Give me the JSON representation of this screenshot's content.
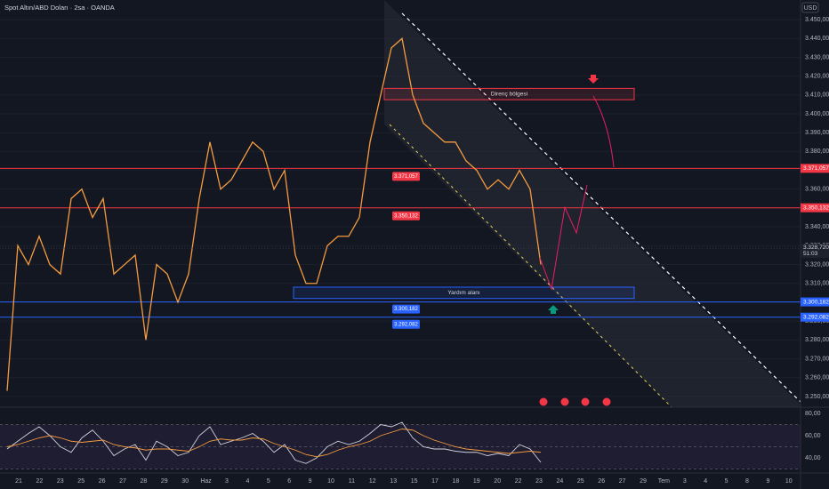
{
  "chart_data": [
    {
      "type": "line",
      "title": "Spot Altın/ABD Doları · 2sa · OANDA",
      "currency": "USD",
      "ylim": [
        3244.3,
        3460.4
      ],
      "yticks": [
        {
          "value": 3250,
          "label": "3.250,000"
        },
        {
          "value": 3260,
          "label": "3.260,000"
        },
        {
          "value": 3270,
          "label": "3.270,000"
        },
        {
          "value": 3280,
          "label": "3.280,000"
        },
        {
          "value": 3290,
          "label": "3.290,000"
        },
        {
          "value": 3300,
          "label": "3.300,000"
        },
        {
          "value": 3310,
          "label": "3.310,000"
        },
        {
          "value": 3320,
          "label": "3.320,000"
        },
        {
          "value": 3330,
          "label": "3.330,000"
        },
        {
          "value": 3340,
          "label": "3.340,000"
        },
        {
          "value": 3350,
          "label": "3.350,000"
        },
        {
          "value": 3360,
          "label": "3.360,000"
        },
        {
          "value": 3370,
          "label": "3.370,000"
        },
        {
          "value": 3380,
          "label": "3.380,000"
        },
        {
          "value": 3390,
          "label": "3.390,000"
        },
        {
          "value": 3400,
          "label": "3.400,000"
        },
        {
          "value": 3410,
          "label": "3.410,000"
        },
        {
          "value": 3420,
          "label": "3.420,000"
        },
        {
          "value": 3430,
          "label": "3.430,000"
        },
        {
          "value": 3440,
          "label": "3.440,000"
        },
        {
          "value": 3450,
          "label": "3.450,000"
        }
      ],
      "grid": true,
      "series": [
        {
          "color": "#f59b3f",
          "values": [
            3253,
            3330,
            3320,
            3335,
            3320,
            3315,
            3355,
            3360,
            3345,
            3355,
            3315,
            3320,
            3325,
            3280,
            3320,
            3315,
            3300,
            3315,
            3355,
            3385,
            3360,
            3365,
            3375,
            3385,
            3380,
            3360,
            3370,
            3325,
            3310,
            3310,
            3330,
            3335,
            3335,
            3345,
            3385,
            3410,
            3435,
            3440,
            3410,
            3395,
            3390,
            3385,
            3385,
            3375,
            3370,
            3360,
            3365,
            3360,
            3370,
            3360,
            3320
          ]
        }
      ],
      "levels": [
        {
          "value": 3371.057,
          "label": "3.371,057",
          "color": "#f23645"
        },
        {
          "value": 3350.132,
          "label": "3.350,132",
          "color": "#f23645"
        },
        {
          "value": 3300.182,
          "label": "3.300,182",
          "color": "#2962ff"
        },
        {
          "value": 3292.082,
          "label": "3.292,082",
          "color": "#2962ff"
        }
      ],
      "current": {
        "value": 3328.72,
        "label": "3.328,720",
        "countdown": "51:03"
      },
      "zones": [
        {
          "label": "Direnç bölgesi",
          "top": 3413.5,
          "bottom": 3407.5,
          "color": "#f23645"
        },
        {
          "label": "Yardım alanı",
          "top": 3308,
          "bottom": 3302,
          "color": "#2962ff"
        }
      ]
    },
    {
      "type": "line",
      "ylim": [
        26.4,
        85.6
      ],
      "yticks": [
        {
          "value": 80,
          "label": "80,00"
        },
        {
          "value": 60,
          "label": "60,00"
        },
        {
          "value": 40,
          "label": "40,00"
        }
      ],
      "reference_lines": [
        70,
        50,
        30
      ],
      "series": [
        {
          "color": "#d1d4dc",
          "values": [
            48,
            55,
            62,
            68,
            60,
            50,
            45,
            58,
            65,
            55,
            42,
            48,
            52,
            38,
            55,
            50,
            42,
            45,
            60,
            68,
            52,
            55,
            58,
            62,
            55,
            45,
            52,
            38,
            35,
            40,
            50,
            55,
            52,
            55,
            62,
            70,
            68,
            72,
            58,
            50,
            48,
            48,
            46,
            45,
            45,
            42,
            44,
            42,
            52,
            48,
            36
          ]
        },
        {
          "color": "#f59b3f",
          "values": [
            50,
            52,
            55,
            58,
            60,
            58,
            55,
            54,
            55,
            56,
            52,
            50,
            49,
            47,
            48,
            48,
            47,
            46,
            50,
            55,
            57,
            56,
            56,
            58,
            57,
            53,
            50,
            47,
            43,
            41,
            43,
            47,
            50,
            52,
            55,
            60,
            63,
            66,
            65,
            60,
            56,
            53,
            50,
            48,
            47,
            46,
            45,
            44,
            45,
            46,
            45
          ]
        }
      ],
      "x_axis_labels": [
        "21",
        "22",
        "23",
        "25",
        "26",
        "27",
        "28",
        "29",
        "30",
        "Haz",
        "3",
        "4",
        "5",
        "6",
        "9",
        "10",
        "11",
        "12",
        "13",
        "15",
        "17",
        "18",
        "19",
        "20",
        "22",
        "23",
        "24",
        "25",
        "26",
        "27",
        "29",
        "Tem",
        "3",
        "4",
        "5",
        "8",
        "9",
        "10"
      ]
    }
  ]
}
